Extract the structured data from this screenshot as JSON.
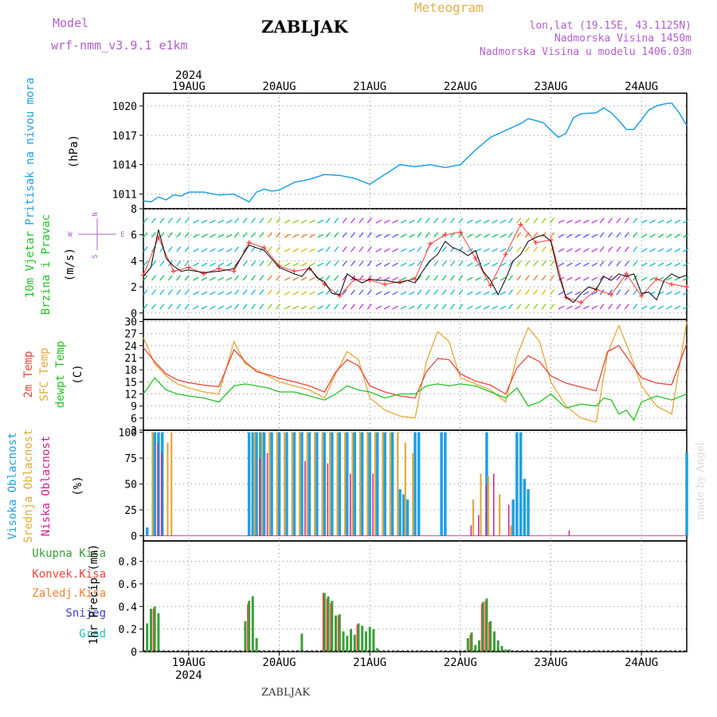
{
  "header": {
    "model_label": "Model",
    "model_name": "wrf-nmm_v3.9.1 e1km",
    "station": "ZABLJAK",
    "meteogram": "Meteogram",
    "lonlat": "lon,lat (19.15E, 43.1125N)",
    "elevation": "Nadmorska Visina 1450m",
    "model_elevation": "Nadmorska Visina u modelu 1406.03m"
  },
  "footer": {
    "station": "ZABLJAK",
    "credit": "made by Angel"
  },
  "x_axis": {
    "year": "2024",
    "day_labels": [
      "19AUG",
      "20AUG",
      "21AUG",
      "22AUG",
      "23AUG",
      "24AUG"
    ],
    "hours_range": [
      -12,
      132
    ]
  },
  "colors": {
    "pressure": "#1fa0e6",
    "t2m": "#e8463a",
    "tsfc": "#e3a83a",
    "dewpt": "#24c224",
    "high_cloud": "#1fa0e6",
    "mid_cloud": "#e0aa3e",
    "low_cloud": "#d0208e",
    "precip_total": "#3aa03a",
    "precip_conv": "#e8463a",
    "wind_speed": "#000000",
    "wind_dir": "#ff3b3b",
    "label_purple": "#b05fd0"
  },
  "chart_data": [
    {
      "type": "line",
      "ylabel_name": "Pritisak na nivou mora",
      "ylabel_unit": "(hPa)",
      "ylim": [
        1009.5,
        1021.3
      ],
      "yticks": [
        1011,
        1014,
        1017,
        1020
      ],
      "grid": true,
      "series": [
        {
          "x": [
            -12,
            -10,
            -8,
            -6,
            -4,
            -2,
            0,
            4,
            8,
            12,
            16,
            18,
            20,
            22,
            24,
            28,
            32,
            36,
            40,
            44,
            48,
            52,
            56,
            60,
            64,
            68,
            72,
            76,
            80,
            84,
            88,
            90,
            92,
            94,
            96,
            98,
            100,
            102,
            104,
            108,
            110,
            112,
            114,
            116,
            118,
            120,
            122,
            124,
            126,
            128,
            130,
            132
          ],
          "values": [
            1010.3,
            1010.2,
            1010.7,
            1010.4,
            1010.9,
            1010.8,
            1011.2,
            1011.2,
            1010.9,
            1011.0,
            1010.2,
            1011.2,
            1011.5,
            1011.3,
            1011.4,
            1012.2,
            1012.5,
            1013.0,
            1012.9,
            1012.6,
            1012.0,
            1013.0,
            1014.0,
            1013.8,
            1014.0,
            1013.7,
            1014.0,
            1015.5,
            1016.8,
            1017.5,
            1018.2,
            1018.7,
            1018.5,
            1018.3,
            1017.5,
            1016.8,
            1017.2,
            1018.8,
            1019.2,
            1019.3,
            1019.8,
            1019.3,
            1018.5,
            1017.6,
            1017.6,
            1018.6,
            1019.6,
            1020.0,
            1020.2,
            1020.3,
            1019.3,
            1018.0
          ]
        }
      ]
    },
    {
      "type": "line",
      "ylabel_name": "10m Vjetar",
      "ylabel_sub": "Brzina i Pravac",
      "ylabel_unit": "(m/s)",
      "compass": {
        "n": "N",
        "s": "S",
        "e": "E",
        "w": "W"
      },
      "ylim": [
        -0.5,
        8
      ],
      "yticks": [
        0,
        2,
        4,
        6,
        8
      ],
      "grid": true,
      "series": [
        {
          "name": "speed",
          "x": [
            -12,
            -10,
            -8,
            -6,
            -4,
            -2,
            0,
            4,
            8,
            12,
            16,
            20,
            24,
            28,
            30,
            32,
            34,
            36,
            38,
            40,
            42,
            44,
            46,
            48,
            50,
            52,
            54,
            56,
            58,
            60,
            62,
            64,
            66,
            68,
            70,
            72,
            74,
            76,
            78,
            80,
            82,
            84,
            86,
            88,
            90,
            92,
            94,
            96,
            98,
            100,
            102,
            104,
            106,
            108,
            110,
            112,
            114,
            116,
            118,
            120,
            122,
            124,
            126,
            128,
            130,
            132
          ],
          "values": [
            2.8,
            3.5,
            6.4,
            4.2,
            3.6,
            3.2,
            3.3,
            3.1,
            3.2,
            3.4,
            5.2,
            4.8,
            3.5,
            3.0,
            2.8,
            3.5,
            2.7,
            2.4,
            1.5,
            1.4,
            3.0,
            2.6,
            2.3,
            2.6,
            2.5,
            2.5,
            2.4,
            2.3,
            2.5,
            2.3,
            3.2,
            4.0,
            4.5,
            5.5,
            5.0,
            4.8,
            4.4,
            4.8,
            3.2,
            2.5,
            1.4,
            2.6,
            4.0,
            4.5,
            5.5,
            5.8,
            6.0,
            5.5,
            3.0,
            1.2,
            0.8,
            1.5,
            2.0,
            1.8,
            2.8,
            2.5,
            3.0,
            2.8,
            3.0,
            1.5,
            1.6,
            1.0,
            2.5,
            3.0,
            2.7,
            2.9
          ]
        },
        {
          "name": "direction",
          "x": [
            -12,
            -8,
            -4,
            0,
            4,
            8,
            12,
            16,
            20,
            24,
            28,
            32,
            36,
            40,
            44,
            48,
            52,
            56,
            60,
            64,
            68,
            72,
            76,
            80,
            84,
            88,
            92,
            96,
            100,
            104,
            108,
            112,
            116,
            120,
            124,
            128,
            132
          ],
          "values": [
            2.9,
            5.8,
            3.2,
            3.5,
            3.0,
            3.4,
            3.2,
            5.4,
            5.0,
            3.6,
            3.2,
            3.4,
            2.2,
            1.3,
            2.6,
            2.5,
            2.2,
            2.4,
            2.6,
            5.3,
            6.0,
            6.2,
            4.2,
            2.1,
            4.5,
            6.8,
            5.4,
            5.6,
            1.2,
            0.8,
            1.8,
            1.4,
            3.0,
            1.3,
            2.6,
            2.2,
            2.0
          ]
        }
      ]
    },
    {
      "type": "line",
      "ylabel_t2m": "2m Temp",
      "ylabel_sfc": "SFC Temp",
      "ylabel_dew": "dewpt Temp",
      "ylabel_unit": "(C)",
      "ylim": [
        3,
        30.5
      ],
      "yticks": [
        3,
        6,
        9,
        12,
        15,
        18,
        21,
        24,
        27,
        30
      ],
      "grid": true,
      "series": [
        {
          "name": "2m Temp",
          "x": [
            -12,
            -9,
            -6,
            -3,
            0,
            4,
            8,
            12,
            15,
            18,
            21,
            24,
            28,
            32,
            36,
            39,
            42,
            45,
            48,
            52,
            56,
            60,
            63,
            66,
            69,
            72,
            76,
            80,
            84,
            87,
            90,
            93,
            96,
            100,
            104,
            108,
            111,
            114,
            117,
            120,
            124,
            128,
            132
          ],
          "values": [
            23.5,
            20.0,
            17.0,
            15.5,
            14.8,
            14.2,
            13.8,
            23.0,
            20.0,
            17.5,
            16.8,
            15.9,
            15.0,
            14.0,
            12.5,
            17.5,
            20.5,
            19.0,
            14.0,
            12.5,
            11.5,
            11.0,
            17.5,
            20.8,
            20.5,
            17.0,
            15.2,
            14.2,
            12.0,
            18.5,
            21.5,
            20.0,
            16.5,
            14.7,
            13.7,
            12.8,
            22.5,
            24.0,
            20.0,
            16.0,
            14.7,
            14.3,
            24.5
          ]
        },
        {
          "name": "SFC Temp",
          "x": [
            -12,
            -9,
            -6,
            -3,
            0,
            4,
            8,
            12,
            15,
            18,
            21,
            24,
            28,
            32,
            36,
            39,
            42,
            45,
            48,
            52,
            56,
            60,
            63,
            66,
            69,
            72,
            76,
            80,
            84,
            87,
            90,
            93,
            96,
            100,
            104,
            108,
            111,
            114,
            117,
            120,
            124,
            128,
            132
          ],
          "values": [
            26.0,
            19.5,
            16.5,
            14.5,
            13.5,
            12.5,
            12.0,
            25.0,
            19.5,
            18.0,
            16.5,
            15.0,
            14.0,
            13.0,
            11.0,
            17.0,
            22.5,
            20.5,
            11.0,
            8.0,
            6.5,
            6.0,
            20.0,
            27.5,
            25.0,
            16.0,
            14.5,
            13.0,
            10.0,
            21.5,
            28.5,
            25.0,
            15.0,
            9.0,
            6.0,
            5.0,
            22.0,
            29.0,
            22.0,
            14.0,
            9.0,
            7.0,
            30.0
          ]
        },
        {
          "name": "dewpt Temp",
          "x": [
            -12,
            -9,
            -6,
            -3,
            0,
            4,
            8,
            12,
            15,
            18,
            21,
            24,
            28,
            32,
            36,
            39,
            42,
            45,
            48,
            52,
            56,
            60,
            63,
            66,
            69,
            72,
            76,
            80,
            84,
            87,
            90,
            93,
            96,
            100,
            104,
            108,
            110,
            112,
            114,
            116,
            118,
            120,
            124,
            128,
            132
          ],
          "values": [
            12.0,
            16.0,
            13.0,
            12.0,
            11.5,
            11.0,
            10.0,
            14.0,
            14.5,
            14.0,
            13.5,
            12.5,
            12.5,
            11.5,
            10.5,
            12.0,
            14.0,
            13.0,
            12.5,
            11.0,
            12.0,
            12.0,
            14.0,
            14.5,
            14.0,
            14.5,
            14.0,
            12.5,
            11.0,
            13.5,
            9.0,
            10.0,
            12.0,
            8.5,
            9.5,
            9.0,
            11.0,
            10.5,
            7.0,
            8.0,
            5.5,
            10.0,
            11.5,
            10.5,
            12.0
          ]
        }
      ]
    },
    {
      "type": "bar",
      "ylabel_high": "Visoka Oblacnost",
      "ylabel_mid": "Srednja Oblacnost",
      "ylabel_low": "Niska Oblacnost",
      "ylabel_unit": "(%)",
      "ylim": [
        -5,
        102
      ],
      "yticks": [
        0,
        25,
        50,
        75,
        100
      ],
      "grid": true,
      "series": [
        {
          "name": "Visoka Oblacnost",
          "x": [
            -11,
            -9,
            -8,
            -7,
            16,
            17,
            18,
            19,
            20,
            22,
            24,
            26,
            28,
            30,
            32,
            34,
            36,
            38,
            40,
            42,
            44,
            46,
            48,
            50,
            52,
            54,
            56,
            57,
            58,
            60,
            61,
            67,
            68,
            79,
            86,
            87,
            88,
            89,
            90,
            132
          ],
          "values": [
            8,
            100,
            100,
            100,
            100,
            100,
            100,
            100,
            100,
            100,
            100,
            100,
            100,
            100,
            100,
            100,
            100,
            100,
            100,
            100,
            100,
            100,
            100,
            100,
            100,
            100,
            45,
            40,
            35,
            100,
            100,
            100,
            100,
            100,
            35,
            100,
            100,
            55,
            45,
            80
          ]
        },
        {
          "name": "Srednja Oblacnost",
          "x": [
            -10,
            -6,
            -5,
            17,
            19,
            21,
            23,
            25,
            27,
            29,
            31,
            33,
            35,
            37,
            39,
            41,
            43,
            45,
            47,
            49,
            51,
            53,
            55,
            57,
            59,
            75,
            77,
            79,
            82,
            85
          ],
          "values": [
            100,
            90,
            100,
            100,
            100,
            100,
            100,
            100,
            100,
            100,
            100,
            100,
            100,
            100,
            100,
            100,
            100,
            100,
            100,
            100,
            100,
            100,
            100,
            90,
            80,
            35,
            60,
            58,
            40,
            10
          ]
        },
        {
          "name": "Niska Oblacnost",
          "x": [
            -9,
            -8,
            18,
            20,
            30,
            36,
            42,
            48,
            74,
            76,
            78,
            80,
            84,
            100
          ],
          "values": [
            90,
            80,
            75,
            80,
            72,
            70,
            60,
            60,
            10,
            20,
            50,
            60,
            30,
            5
          ]
        }
      ]
    },
    {
      "type": "bar",
      "ylabel_total": "Ukupna Kisa",
      "ylabel_conv": "Konvek.Kisa",
      "ylabel_frz": "Zaledj.Kisa",
      "ylabel_snow": "Snijeg",
      "ylabel_hail": "Grad",
      "ylabel_unit": "1hr Precip (mm)",
      "ylim": [
        0,
        0.98
      ],
      "yticks": [
        0,
        0.2,
        0.4,
        0.6,
        0.8
      ],
      "grid": true,
      "series": [
        {
          "name": "Ukupna Kisa",
          "x": [
            -11,
            -10,
            -9,
            -8,
            15,
            16,
            17,
            18,
            30,
            36,
            37,
            38,
            39,
            40,
            41,
            42,
            43,
            44,
            45,
            46,
            47,
            48,
            49,
            50,
            74,
            75,
            76,
            77,
            78,
            79,
            80,
            81,
            82,
            83,
            84,
            85,
            86
          ],
          "values": [
            0.25,
            0.38,
            0.4,
            0.34,
            0.27,
            0.45,
            0.49,
            0.12,
            0.16,
            0.52,
            0.49,
            0.45,
            0.32,
            0.33,
            0.18,
            0.14,
            0.2,
            0.15,
            0.25,
            0.23,
            0.18,
            0.22,
            0.2,
            0.03,
            0.12,
            0.17,
            0.06,
            0.1,
            0.44,
            0.47,
            0.27,
            0.18,
            0.1,
            0.05,
            0.02,
            0.02,
            0.01
          ]
        },
        {
          "name": "Konvek.Kisa",
          "x": [
            -9,
            16,
            36,
            37,
            38,
            40,
            45,
            75,
            78,
            79,
            80
          ],
          "values": [
            0.38,
            0.42,
            0.52,
            0.47,
            0.43,
            0.32,
            0.24,
            0.15,
            0.42,
            0.45,
            0.26
          ]
        }
      ]
    }
  ]
}
